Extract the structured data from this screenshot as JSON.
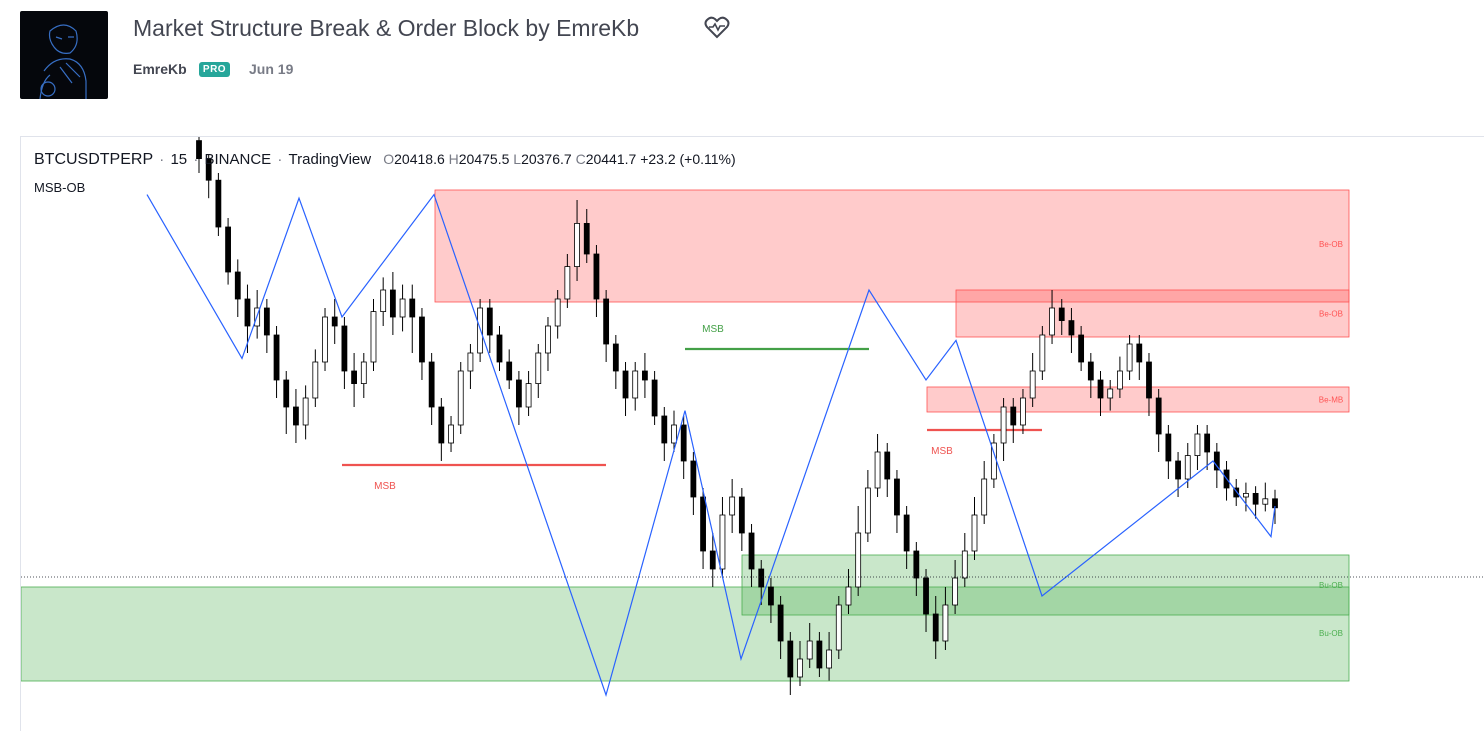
{
  "header": {
    "title": "Market Structure Break & Order Block by EmreKb",
    "author": "EmreKb",
    "badge": "PRO",
    "date": "Jun 19",
    "icons": {
      "avatar": "user-avatar",
      "favorite": "heart-pulse-icon"
    }
  },
  "legend": {
    "symbol": "BTCUSDTPERP",
    "interval": "15",
    "exchange": "BINANCE",
    "source": "TradingView",
    "open_label": "O",
    "open": "20418.6",
    "high_label": "H",
    "high": "20475.5",
    "low_label": "L",
    "low": "20376.7",
    "close_label": "C",
    "close": "20441.7",
    "change": "+23.2 (+0.11%)"
  },
  "indicator": {
    "name": "MSB-OB"
  },
  "chart_data": {
    "type": "candlestick",
    "colors": {
      "bull_body": "#ffffff",
      "bear_body": "#000000",
      "wick": "#000000",
      "zigzag": "#2962ff",
      "bearish_zone": "#ff5252",
      "bullish_zone": "#4caf50",
      "msb_bearish": "#ef5350",
      "msb_bullish": "#43a047"
    },
    "grid": false,
    "candles": [
      [
        1.028,
        1.018,
        1.03,
        1.01
      ],
      [
        1.018,
        1.006,
        1.02,
        0.996
      ],
      [
        1.006,
        0.98,
        1.01,
        0.975
      ],
      [
        0.98,
        0.955,
        0.985,
        0.948
      ],
      [
        0.955,
        0.94,
        0.962,
        0.93
      ],
      [
        0.94,
        0.925,
        0.948,
        0.91
      ],
      [
        0.925,
        0.935,
        0.945,
        0.918
      ],
      [
        0.935,
        0.92,
        0.94,
        0.91
      ],
      [
        0.92,
        0.895,
        0.925,
        0.885
      ],
      [
        0.895,
        0.88,
        0.9,
        0.865
      ],
      [
        0.88,
        0.87,
        0.89,
        0.86
      ],
      [
        0.87,
        0.885,
        0.892,
        0.862
      ],
      [
        0.885,
        0.905,
        0.912,
        0.88
      ],
      [
        0.905,
        0.93,
        0.935,
        0.9
      ],
      [
        0.93,
        0.925,
        0.94,
        0.915
      ],
      [
        0.925,
        0.9,
        0.93,
        0.89
      ],
      [
        0.9,
        0.893,
        0.91,
        0.88
      ],
      [
        0.893,
        0.905,
        0.91,
        0.885
      ],
      [
        0.905,
        0.933,
        0.94,
        0.9
      ],
      [
        0.933,
        0.945,
        0.952,
        0.925
      ],
      [
        0.945,
        0.93,
        0.955,
        0.92
      ],
      [
        0.93,
        0.94,
        0.948,
        0.922
      ],
      [
        0.94,
        0.93,
        0.948,
        0.91
      ],
      [
        0.93,
        0.905,
        0.935,
        0.895
      ],
      [
        0.905,
        0.88,
        0.91,
        0.87
      ],
      [
        0.88,
        0.86,
        0.885,
        0.85
      ],
      [
        0.86,
        0.87,
        0.875,
        0.855
      ],
      [
        0.87,
        0.9,
        0.905,
        0.865
      ],
      [
        0.9,
        0.91,
        0.915,
        0.89
      ],
      [
        0.91,
        0.935,
        0.94,
        0.905
      ],
      [
        0.935,
        0.92,
        0.94,
        0.91
      ],
      [
        0.92,
        0.905,
        0.925,
        0.9
      ],
      [
        0.905,
        0.895,
        0.912,
        0.89
      ],
      [
        0.895,
        0.88,
        0.9,
        0.87
      ],
      [
        0.88,
        0.893,
        0.9,
        0.875
      ],
      [
        0.893,
        0.91,
        0.915,
        0.885
      ],
      [
        0.91,
        0.925,
        0.93,
        0.9
      ],
      [
        0.925,
        0.94,
        0.945,
        0.918
      ],
      [
        0.94,
        0.958,
        0.965,
        0.935
      ],
      [
        0.958,
        0.982,
        0.995,
        0.95
      ],
      [
        0.982,
        0.965,
        0.99,
        0.96
      ],
      [
        0.965,
        0.94,
        0.97,
        0.93
      ],
      [
        0.94,
        0.915,
        0.945,
        0.905
      ],
      [
        0.915,
        0.9,
        0.92,
        0.89
      ],
      [
        0.9,
        0.885,
        0.905,
        0.875
      ],
      [
        0.885,
        0.9,
        0.905,
        0.878
      ],
      [
        0.9,
        0.895,
        0.91,
        0.885
      ],
      [
        0.895,
        0.875,
        0.9,
        0.87
      ],
      [
        0.875,
        0.86,
        0.88,
        0.85
      ],
      [
        0.86,
        0.87,
        0.878,
        0.855
      ],
      [
        0.87,
        0.85,
        0.875,
        0.84
      ],
      [
        0.85,
        0.83,
        0.855,
        0.82
      ],
      [
        0.83,
        0.8,
        0.835,
        0.79
      ],
      [
        0.8,
        0.79,
        0.81,
        0.78
      ],
      [
        0.79,
        0.82,
        0.83,
        0.785
      ],
      [
        0.82,
        0.83,
        0.84,
        0.81
      ],
      [
        0.83,
        0.81,
        0.835,
        0.8
      ],
      [
        0.81,
        0.79,
        0.815,
        0.78
      ],
      [
        0.79,
        0.78,
        0.795,
        0.77
      ],
      [
        0.78,
        0.77,
        0.785,
        0.76
      ],
      [
        0.77,
        0.75,
        0.775,
        0.74
      ],
      [
        0.75,
        0.73,
        0.755,
        0.72
      ],
      [
        0.73,
        0.74,
        0.75,
        0.725
      ],
      [
        0.74,
        0.75,
        0.76,
        0.735
      ],
      [
        0.75,
        0.735,
        0.755,
        0.73
      ],
      [
        0.735,
        0.745,
        0.755,
        0.728
      ],
      [
        0.745,
        0.77,
        0.775,
        0.74
      ],
      [
        0.77,
        0.78,
        0.79,
        0.765
      ],
      [
        0.78,
        0.81,
        0.825,
        0.775
      ],
      [
        0.81,
        0.835,
        0.845,
        0.805
      ],
      [
        0.835,
        0.855,
        0.865,
        0.83
      ],
      [
        0.855,
        0.84,
        0.86,
        0.83
      ],
      [
        0.84,
        0.82,
        0.845,
        0.81
      ],
      [
        0.82,
        0.8,
        0.825,
        0.79
      ],
      [
        0.8,
        0.785,
        0.805,
        0.775
      ],
      [
        0.785,
        0.765,
        0.79,
        0.755
      ],
      [
        0.765,
        0.75,
        0.775,
        0.74
      ],
      [
        0.75,
        0.77,
        0.78,
        0.745
      ],
      [
        0.77,
        0.785,
        0.795,
        0.765
      ],
      [
        0.785,
        0.8,
        0.81,
        0.78
      ],
      [
        0.8,
        0.82,
        0.83,
        0.795
      ],
      [
        0.82,
        0.84,
        0.85,
        0.815
      ],
      [
        0.84,
        0.86,
        0.865,
        0.835
      ],
      [
        0.86,
        0.88,
        0.885,
        0.85
      ],
      [
        0.88,
        0.87,
        0.885,
        0.86
      ],
      [
        0.87,
        0.885,
        0.89,
        0.865
      ],
      [
        0.885,
        0.9,
        0.91,
        0.88
      ],
      [
        0.9,
        0.92,
        0.925,
        0.895
      ],
      [
        0.92,
        0.935,
        0.945,
        0.915
      ],
      [
        0.935,
        0.928,
        0.94,
        0.92
      ],
      [
        0.928,
        0.92,
        0.935,
        0.91
      ],
      [
        0.92,
        0.905,
        0.925,
        0.9
      ],
      [
        0.905,
        0.895,
        0.91,
        0.885
      ],
      [
        0.895,
        0.885,
        0.9,
        0.875
      ],
      [
        0.885,
        0.89,
        0.895,
        0.878
      ],
      [
        0.89,
        0.9,
        0.908,
        0.885
      ],
      [
        0.9,
        0.915,
        0.92,
        0.895
      ],
      [
        0.915,
        0.905,
        0.92,
        0.895
      ],
      [
        0.905,
        0.885,
        0.91,
        0.875
      ],
      [
        0.885,
        0.865,
        0.89,
        0.855
      ],
      [
        0.865,
        0.85,
        0.87,
        0.84
      ],
      [
        0.85,
        0.84,
        0.855,
        0.83
      ],
      [
        0.84,
        0.853,
        0.86,
        0.835
      ],
      [
        0.853,
        0.865,
        0.87,
        0.845
      ],
      [
        0.865,
        0.855,
        0.87,
        0.845
      ],
      [
        0.855,
        0.845,
        0.86,
        0.835
      ],
      [
        0.845,
        0.835,
        0.85,
        0.828
      ],
      [
        0.835,
        0.83,
        0.84,
        0.825
      ],
      [
        0.83,
        0.832,
        0.838,
        0.822
      ],
      [
        0.832,
        0.826,
        0.836,
        0.818
      ],
      [
        0.826,
        0.829,
        0.838,
        0.822
      ],
      [
        0.829,
        0.824,
        0.834,
        0.815
      ]
    ],
    "zigzag": [
      0.998,
      0.907,
      0.996,
      0.93,
      0.998,
      0.72,
      0.878,
      0.74,
      0.945,
      0.895,
      0.917,
      0.775,
      0.85,
      0.808,
      0.825
    ],
    "zones": [
      {
        "label": "Be-OB",
        "type": "bearish"
      },
      {
        "label": "Be-OB",
        "type": "bearish"
      },
      {
        "label": "Be-MB",
        "type": "bearish"
      },
      {
        "label": "Bu-OB",
        "type": "bullish"
      },
      {
        "label": "Bu-OB",
        "type": "bullish"
      }
    ],
    "msb_lines": [
      {
        "label": "MSB",
        "type": "bearish"
      },
      {
        "label": "MSB",
        "type": "bullish"
      },
      {
        "label": "MSB",
        "type": "bearish"
      }
    ]
  }
}
